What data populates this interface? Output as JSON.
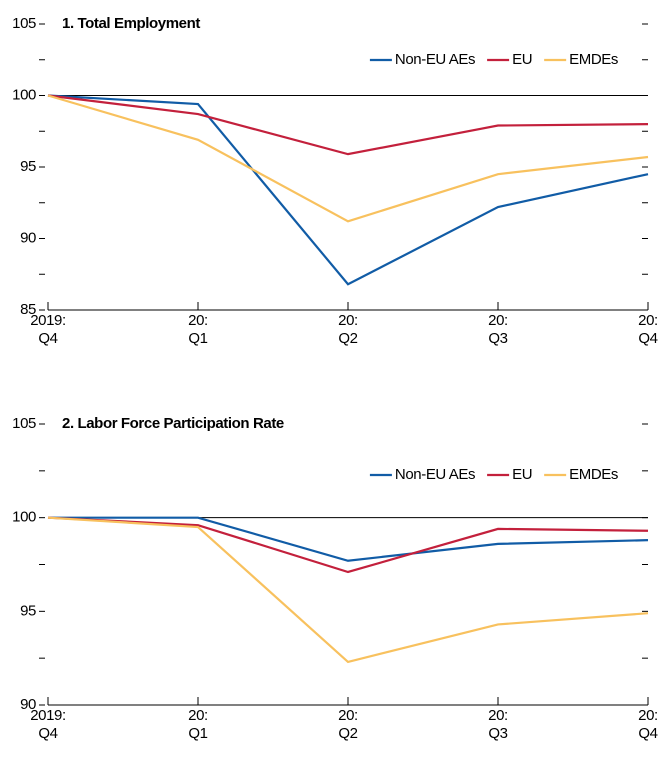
{
  "chart_data": [
    {
      "type": "line",
      "title": "1. Total Employment",
      "categories": [
        "2019:\nQ4",
        "20:\nQ1",
        "20:\nQ2",
        "20:\nQ3",
        "20:\nQ4"
      ],
      "series": [
        {
          "name": "Non-EU AEs",
          "color": "#115ca6",
          "values": [
            100,
            99.4,
            86.8,
            92.2,
            94.5
          ]
        },
        {
          "name": "EU",
          "color": "#c3203c",
          "values": [
            100,
            98.7,
            95.9,
            97.9,
            98.0
          ]
        },
        {
          "name": "EMDEs",
          "color": "#f8c15e",
          "values": [
            100,
            96.9,
            91.2,
            94.5,
            95.7
          ]
        }
      ],
      "ylim": [
        85,
        105
      ],
      "yticks": [
        85,
        90,
        95,
        100,
        105
      ],
      "yminorticks": [
        87.5,
        92.5,
        97.5,
        102.5
      ],
      "reference_line": 100,
      "legend": "upper right"
    },
    {
      "type": "line",
      "title": "2. Labor Force Participation Rate",
      "categories": [
        "2019:\nQ4",
        "20:\nQ1",
        "20:\nQ2",
        "20:\nQ3",
        "20:\nQ4"
      ],
      "series": [
        {
          "name": "Non-EU AEs",
          "color": "#115ca6",
          "values": [
            100,
            100,
            97.7,
            98.6,
            98.8
          ]
        },
        {
          "name": "EU",
          "color": "#c3203c",
          "values": [
            100,
            99.6,
            97.1,
            99.4,
            99.3
          ]
        },
        {
          "name": "EMDEs",
          "color": "#f8c15e",
          "values": [
            100,
            99.5,
            92.3,
            94.3,
            94.9
          ]
        }
      ],
      "ylim": [
        90,
        105
      ],
      "yticks": [
        90,
        95,
        100,
        105
      ],
      "yminorticks": [
        92.5,
        97.5,
        102.5
      ],
      "reference_line": 100,
      "legend": "upper right"
    }
  ]
}
